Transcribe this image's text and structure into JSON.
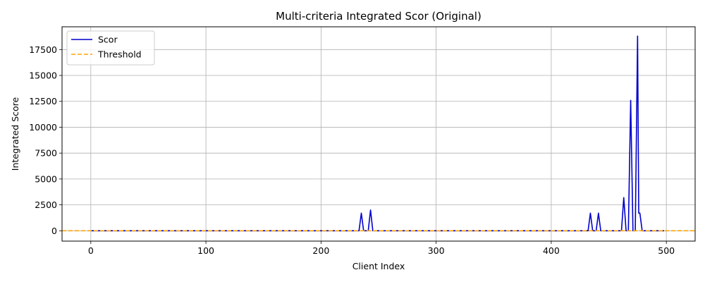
{
  "chart_data": {
    "type": "line",
    "title": "Multi-criteria Integrated Scor (Original)",
    "xlabel": "Client Index",
    "ylabel": "Integrated Score",
    "xlim": [
      -25,
      525
    ],
    "ylim": [
      -1000,
      19700
    ],
    "xticks": [
      0,
      100,
      200,
      300,
      400,
      500
    ],
    "yticks": [
      0,
      2500,
      5000,
      7500,
      10000,
      12500,
      15000,
      17500
    ],
    "grid": true,
    "legend_position": "top-left",
    "series": [
      {
        "name": "Scor",
        "color": "#0000cc",
        "style": "solid",
        "points": [
          [
            0,
            0
          ],
          [
            233,
            0
          ],
          [
            235,
            1700
          ],
          [
            237,
            0
          ],
          [
            241,
            0
          ],
          [
            243,
            2000
          ],
          [
            245,
            0
          ],
          [
            432,
            0
          ],
          [
            434,
            1700
          ],
          [
            436,
            0
          ],
          [
            439,
            0
          ],
          [
            441,
            1700
          ],
          [
            443,
            0
          ],
          [
            461,
            0
          ],
          [
            463,
            3200
          ],
          [
            465,
            0
          ],
          [
            467,
            0
          ],
          [
            469,
            12600
          ],
          [
            471,
            0
          ],
          [
            473,
            0
          ],
          [
            475,
            18800
          ],
          [
            476,
            1700
          ],
          [
            477,
            1700
          ],
          [
            479,
            0
          ],
          [
            498,
            0
          ]
        ]
      },
      {
        "name": "Threshold",
        "color": "#ffa500",
        "style": "dashed",
        "y": 0
      }
    ]
  }
}
